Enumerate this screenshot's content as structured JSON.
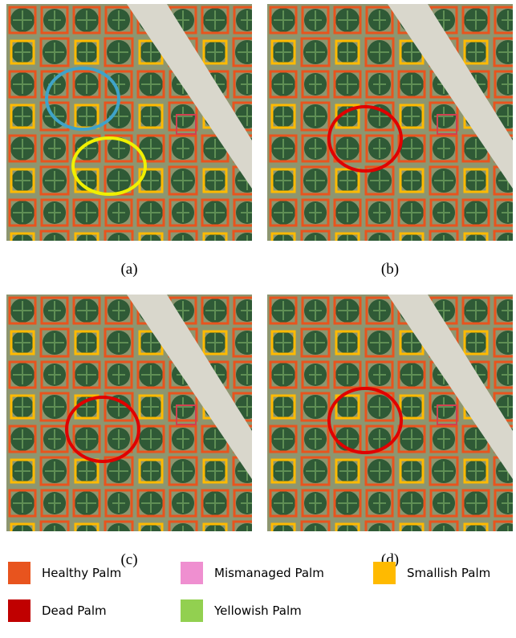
{
  "panels": [
    {
      "caption": "(a)"
    },
    {
      "caption": "(b)"
    },
    {
      "caption": "(c)"
    },
    {
      "caption": "(d)"
    }
  ],
  "legend": [
    {
      "label": "Healthy Palm",
      "color": "#e8541e"
    },
    {
      "label": "Mismanaged Palm",
      "color": "#ef8fd0"
    },
    {
      "label": "Smallish Palm",
      "color": "#ffba00"
    },
    {
      "label": "Dead Palm",
      "color": "#c00000"
    },
    {
      "label": "Yellowish Palm",
      "color": "#92d050"
    }
  ]
}
